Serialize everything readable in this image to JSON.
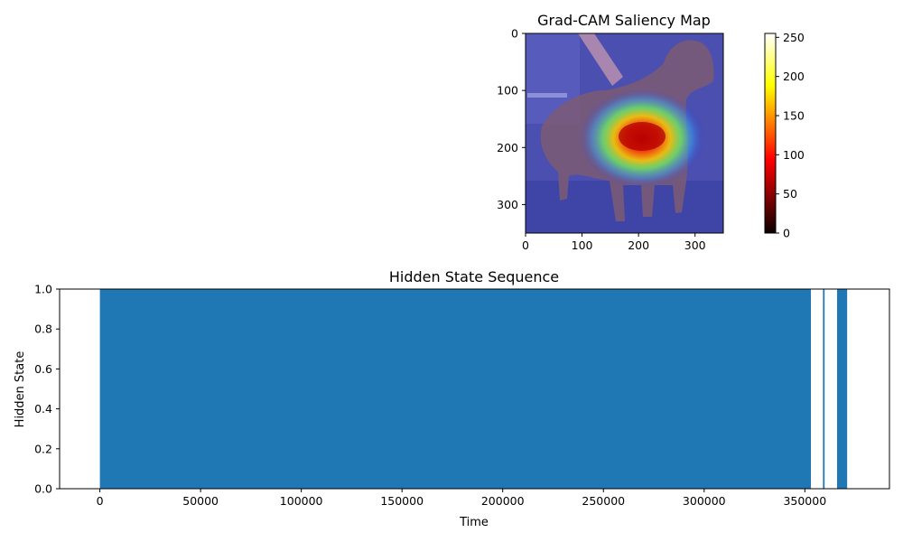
{
  "chart_data": [
    {
      "type": "heatmap",
      "title": "Grad-CAM Saliency Map",
      "xlabel": "",
      "ylabel": "",
      "xlim": [
        0,
        350
      ],
      "ylim": [
        350,
        0
      ],
      "xticks": [
        0,
        100,
        200,
        300
      ],
      "yticks": [
        0,
        100,
        200,
        300
      ],
      "hotspot": {
        "x": 210,
        "y": 185
      },
      "colorbar": {
        "colormap": "hot",
        "range": [
          0,
          255
        ],
        "ticks": [
          0,
          50,
          100,
          150,
          200,
          250
        ]
      },
      "overlay": "photograph of a brown dog with a person's hand petting it, blended with jet-colormap heat overlay"
    },
    {
      "type": "bar",
      "title": "Hidden State Sequence",
      "xlabel": "Time",
      "ylabel": "Hidden State",
      "xlim": [
        -20000,
        392000
      ],
      "ylim": [
        0,
        1
      ],
      "xticks": [
        0,
        50000,
        100000,
        150000,
        200000,
        250000,
        300000,
        350000
      ],
      "yticks": [
        0.0,
        0.2,
        0.4,
        0.6,
        0.8,
        1.0
      ],
      "color": "#1f77b4",
      "segments": [
        {
          "start": 0,
          "end": 353000,
          "value": 1
        },
        {
          "start": 353000,
          "end": 359000,
          "value": 0
        },
        {
          "start": 359000,
          "end": 359800,
          "value": 1
        },
        {
          "start": 359800,
          "end": 366000,
          "value": 0
        },
        {
          "start": 366000,
          "end": 371000,
          "value": 1
        }
      ]
    }
  ]
}
